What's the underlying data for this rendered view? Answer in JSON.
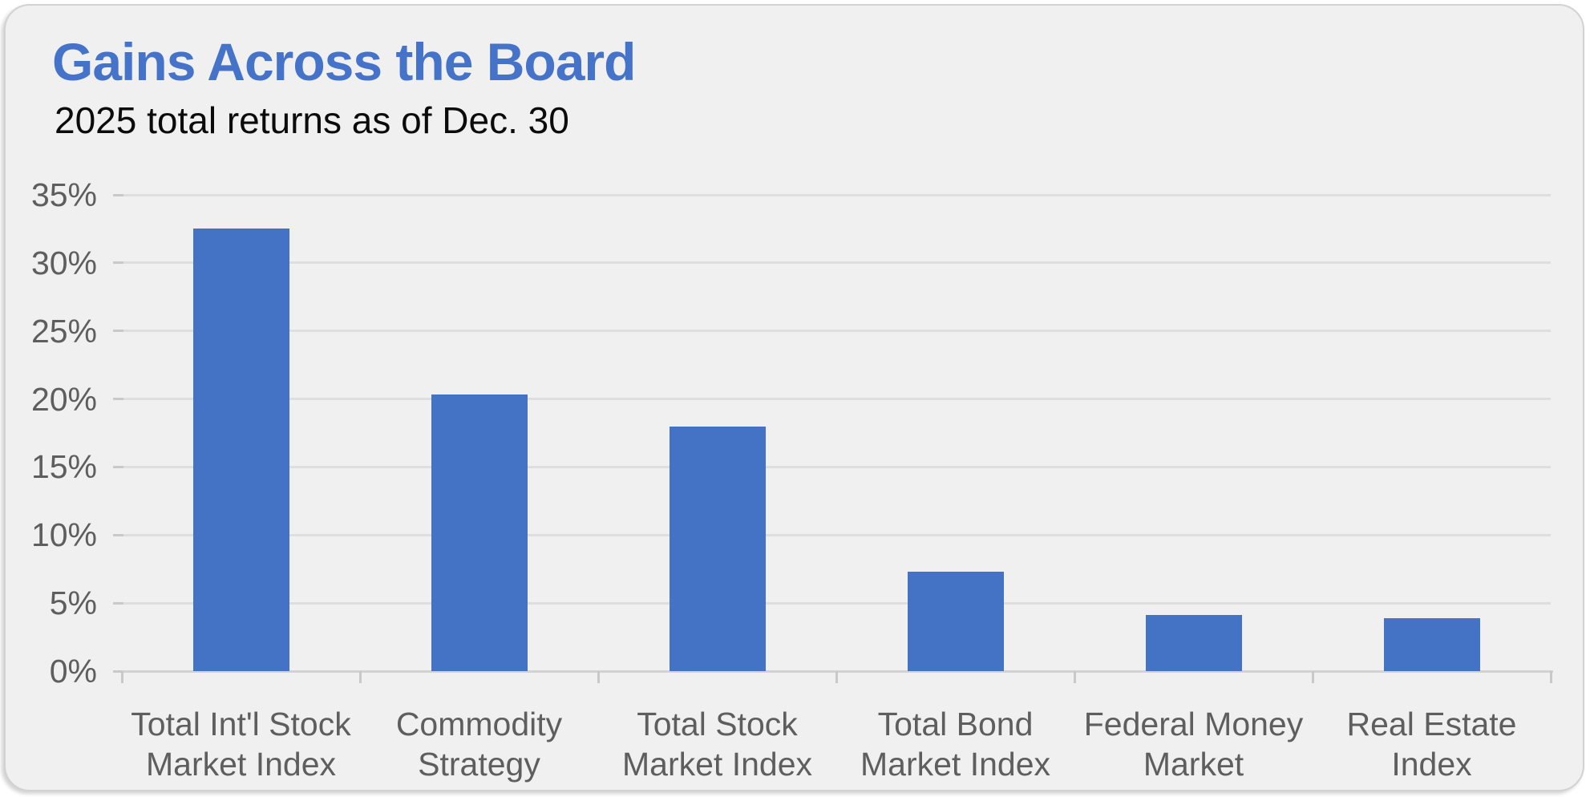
{
  "card": {
    "background_color": "#f0f0f1",
    "border_color": "#d2d2d2",
    "page_background": "#ffffff"
  },
  "chart_data": {
    "type": "bar",
    "title": "Gains Across the Board",
    "subtitle": "2025 total returns as of Dec. 30",
    "categories": [
      "Total Int'l Stock\nMarket Index",
      "Commodity\nStrategy",
      "Total Stock\nMarket Index",
      "Total Bond\nMarket Index",
      "Federal Money\nMarket",
      "Real Estate\nIndex"
    ],
    "values": [
      32.5,
      20.3,
      18.0,
      7.3,
      4.1,
      3.9
    ],
    "unit": "%",
    "xlabel": "",
    "ylabel": "",
    "ylim": [
      0,
      35
    ],
    "ytick_step": 5,
    "ytick_labels": [
      "0%",
      "5%",
      "10%",
      "15%",
      "20%",
      "25%",
      "30%",
      "35%"
    ],
    "grid": true,
    "legend_position": "none",
    "bar_color": "#4473c5",
    "title_color": "#4573c9",
    "subtitle_color": "#0b0b0b",
    "axis_label_color": "#5e5e5e",
    "gridline_color": "#dedede"
  }
}
